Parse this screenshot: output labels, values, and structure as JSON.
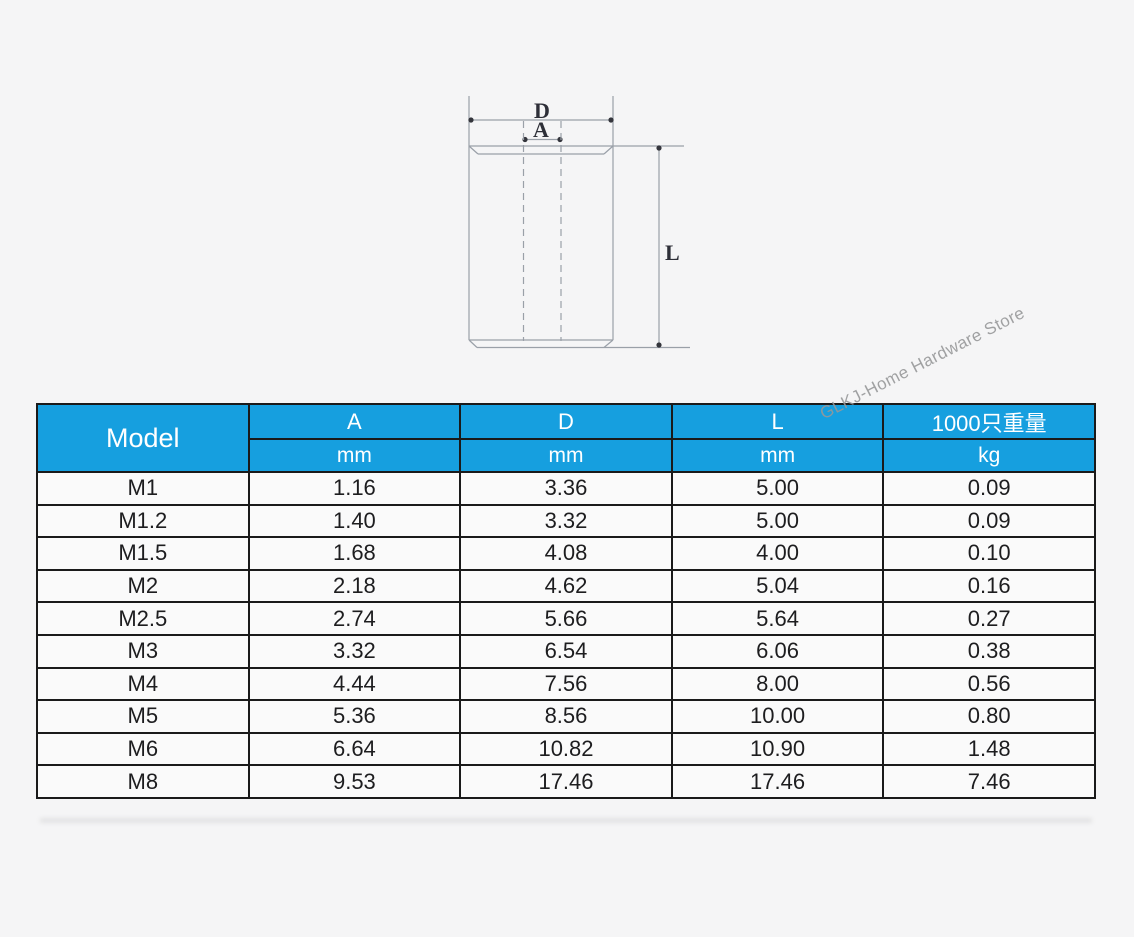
{
  "page": {
    "watermark": "GLKJ-Home Hardware Store"
  },
  "colors": {
    "page-bg": "#f5f5f6",
    "header-bg": "#169fdf",
    "header-text": "#ffffff",
    "table-border": "#1a1a1a",
    "row-bg": "#fafafa",
    "cell-text": "#1d1d1f",
    "line": "#9aa0a8",
    "dot": "#34353c",
    "label": "#2e2f38",
    "watermark": "#97989a"
  },
  "diagram": {
    "labels": {
      "d": "D",
      "a": "A",
      "l": "L"
    }
  },
  "table": {
    "header": {
      "model": "Model",
      "columns": [
        {
          "name": "A",
          "unit": "mm"
        },
        {
          "name": "D",
          "unit": "mm"
        },
        {
          "name": "L",
          "unit": "mm"
        },
        {
          "name": "1000只重量",
          "unit": "kg"
        }
      ]
    },
    "rows": [
      {
        "model": "M1",
        "a": "1.16",
        "d": "3.36",
        "l": "5.00",
        "weight": "0.09"
      },
      {
        "model": "M1.2",
        "a": "1.40",
        "d": "3.32",
        "l": "5.00",
        "weight": "0.09"
      },
      {
        "model": "M1.5",
        "a": "1.68",
        "d": "4.08",
        "l": "4.00",
        "weight": "0.10"
      },
      {
        "model": "M2",
        "a": "2.18",
        "d": "4.62",
        "l": "5.04",
        "weight": "0.16"
      },
      {
        "model": "M2.5",
        "a": "2.74",
        "d": "5.66",
        "l": "5.64",
        "weight": "0.27"
      },
      {
        "model": "M3",
        "a": "3.32",
        "d": "6.54",
        "l": "6.06",
        "weight": "0.38"
      },
      {
        "model": "M4",
        "a": "4.44",
        "d": "7.56",
        "l": "8.00",
        "weight": "0.56"
      },
      {
        "model": "M5",
        "a": "5.36",
        "d": "8.56",
        "l": "10.00",
        "weight": "0.80"
      },
      {
        "model": "M6",
        "a": "6.64",
        "d": "10.82",
        "l": "10.90",
        "weight": "1.48"
      },
      {
        "model": "M8",
        "a": "9.53",
        "d": "17.46",
        "l": "17.46",
        "weight": "7.46"
      }
    ]
  }
}
